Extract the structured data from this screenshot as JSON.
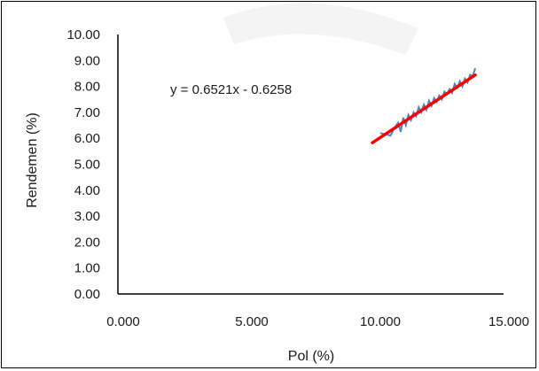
{
  "chart_data": {
    "type": "line",
    "title": "",
    "xlabel": "Pol (%)",
    "ylabel": "Rendemen (%)",
    "xlim": [
      0,
      15
    ],
    "ylim": [
      0,
      10
    ],
    "x_ticks": [
      0,
      5,
      10,
      15
    ],
    "x_tick_labels": [
      "0.000",
      "5.000",
      "10.000",
      "15.000"
    ],
    "y_ticks": [
      0,
      1,
      2,
      3,
      4,
      5,
      6,
      7,
      8,
      9,
      10
    ],
    "y_tick_labels": [
      "0.00",
      "1.00",
      "2.00",
      "3.00",
      "4.00",
      "5.00",
      "6.00",
      "7.00",
      "8.00",
      "9.00",
      "10.00"
    ],
    "grid": false,
    "annotation": "y = 0.6521x - 0.6258",
    "series": [
      {
        "role": "observed",
        "color": "#4a86c5",
        "x": [
          10.2,
          10.45,
          10.6,
          10.75,
          10.9,
          11.0,
          11.1,
          11.2,
          11.3,
          11.4,
          11.5,
          11.6,
          11.7,
          11.8,
          11.9,
          12.0,
          12.1,
          12.2,
          12.3,
          12.4,
          12.5,
          12.6,
          12.7,
          12.8,
          12.9,
          13.0,
          13.1,
          13.2,
          13.3,
          13.4,
          13.5,
          13.6,
          13.7,
          13.8,
          13.9
        ],
        "y": [
          6.2,
          6.15,
          6.1,
          6.4,
          6.6,
          6.25,
          6.8,
          6.5,
          6.9,
          6.7,
          7.0,
          6.85,
          7.2,
          7.0,
          7.3,
          7.1,
          7.45,
          7.25,
          7.55,
          7.4,
          7.65,
          7.5,
          7.8,
          7.7,
          7.9,
          7.75,
          8.1,
          7.95,
          8.2,
          8.0,
          8.3,
          8.15,
          8.45,
          8.4,
          8.7
        ]
      },
      {
        "role": "trendline",
        "color": "#ff0000",
        "x": [
          9.9,
          13.9
        ],
        "y": [
          5.83,
          8.44
        ]
      }
    ]
  }
}
